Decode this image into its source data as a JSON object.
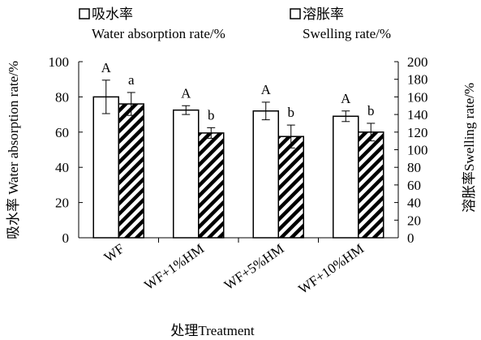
{
  "chart_data": {
    "type": "bar",
    "categories": [
      "WF",
      "WF+1%HM",
      "WF+5%HM",
      "WF+10%HM"
    ],
    "series": [
      {
        "name_zh": "吸水率",
        "name_en": "Water absorption rate/%",
        "axis": "left",
        "pattern": "hollow",
        "values": [
          80,
          72.5,
          72,
          69
        ],
        "errors": [
          9.5,
          2.5,
          5,
          3
        ],
        "significance": [
          "A",
          "A",
          "A",
          "A"
        ]
      },
      {
        "name_zh": "溶胀率",
        "name_en": "Swelling rate/%",
        "axis": "right",
        "pattern": "diagonal-hatch",
        "values": [
          152,
          119,
          115,
          120
        ],
        "errors": [
          13,
          6,
          13,
          10
        ],
        "significance": [
          "a",
          "b",
          "b",
          "b"
        ]
      }
    ],
    "xlabel": "处理Treatment",
    "ylabel_left": "吸水率 Water absorption rate/%",
    "ylabel_right": "溶胀率Swelling rate/%",
    "ylim_left": [
      0,
      100
    ],
    "ylim_right": [
      0,
      200
    ],
    "yticks_left": [
      "0",
      "20",
      "40",
      "60",
      "80",
      "100"
    ],
    "yticks_right": [
      "0",
      "20",
      "40",
      "60",
      "80",
      "100",
      "120",
      "140",
      "160",
      "180",
      "200"
    ],
    "legend_position": "top",
    "grid": false
  }
}
